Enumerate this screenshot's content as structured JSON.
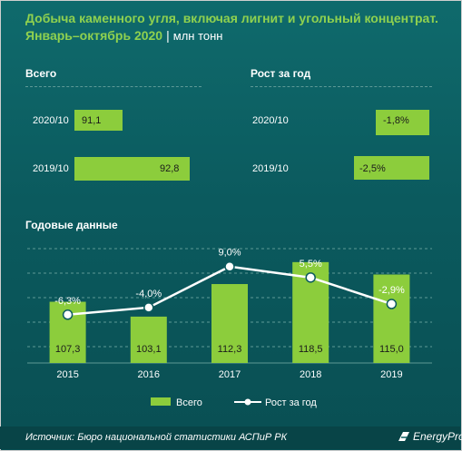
{
  "header": {
    "title_line1": "Добыча каменного угля, включая лигнит и угольный концентрат.",
    "title_line2": "Январь–октябрь 2020",
    "separator": "|",
    "unit": "млн тонн"
  },
  "panels": {
    "total_label": "Всего",
    "growth_label": "Рост за год",
    "annual_label": "Годовые данные"
  },
  "legend": {
    "bars": "Всего",
    "line": "Рост за год"
  },
  "footer": {
    "source": "Источник: Бюро национальной  статистики АСПиР РК",
    "logo": "EnergyProm"
  },
  "colors": {
    "background": "#0b5a5e",
    "bar": "#8ccd3c",
    "title": "#8fd14f",
    "line": "#ffffff"
  },
  "chart_data": [
    {
      "type": "bar",
      "orientation": "horizontal",
      "title": "Всего",
      "categories": [
        "2020/10",
        "2019/10"
      ],
      "values": [
        91.1,
        92.8
      ],
      "value_labels": [
        "91,1",
        "92,8"
      ]
    },
    {
      "type": "bar",
      "orientation": "horizontal",
      "title": "Рост за год",
      "categories": [
        "2020/10",
        "2019/10"
      ],
      "values": [
        -1.8,
        -2.5
      ],
      "value_labels": [
        "-1,8%",
        "-2,5%"
      ]
    },
    {
      "type": "bar",
      "title": "Годовые данные",
      "categories": [
        "2015",
        "2016",
        "2017",
        "2018",
        "2019"
      ],
      "series": [
        {
          "name": "Всего",
          "type": "bar",
          "values": [
            107.3,
            103.1,
            112.3,
            118.5,
            115.0
          ],
          "labels": [
            "107,3",
            "103,1",
            "112,3",
            "118,5",
            "115,0"
          ]
        },
        {
          "name": "Рост за год",
          "type": "line",
          "values": [
            -6.3,
            -4.0,
            9.0,
            5.5,
            -2.9
          ],
          "labels": [
            "-6,3%",
            "-4,0%",
            "9,0%",
            "5,5%",
            "-2,9%"
          ]
        }
      ],
      "grid": true,
      "legend_position": "bottom"
    }
  ]
}
